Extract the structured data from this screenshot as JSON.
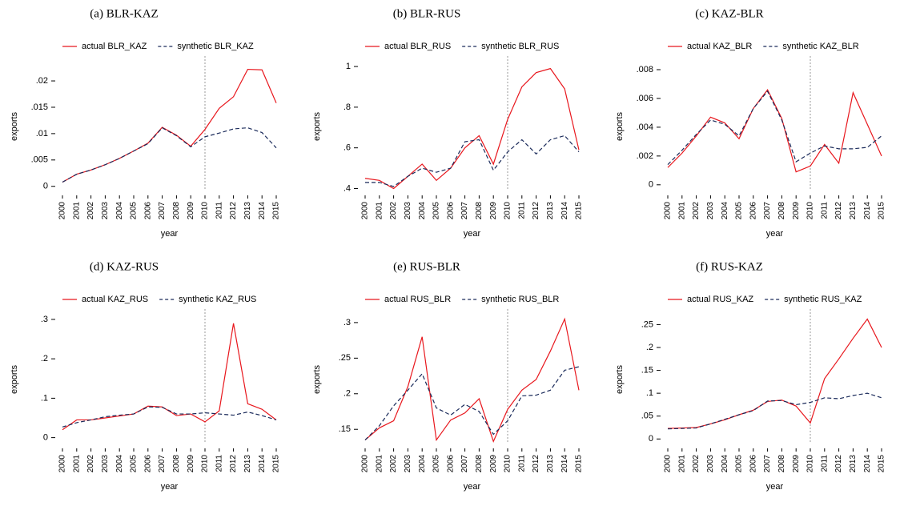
{
  "chart_data": [
    {
      "type": "line",
      "title": "(a) BLR-KAZ",
      "x_label": "year",
      "y_label": "exports",
      "x": [
        2000,
        2001,
        2002,
        2003,
        2004,
        2005,
        2006,
        2007,
        2008,
        2009,
        2010,
        2011,
        2012,
        2013,
        2014,
        2015
      ],
      "xlim": [
        2000,
        2015
      ],
      "xticks": [
        2000,
        2001,
        2002,
        2003,
        2004,
        2005,
        2006,
        2007,
        2008,
        2009,
        2010,
        2011,
        2012,
        2013,
        2014,
        2015
      ],
      "ylim": [
        -0.0008,
        0.0235
      ],
      "yticks": [
        0,
        {
          "value": 0.005,
          "label": ".005"
        },
        {
          "value": 0.01,
          "label": ".01"
        },
        {
          "value": 0.015,
          "label": ".015"
        },
        {
          "value": 0.02,
          "label": ".02"
        }
      ],
      "vline": 2010,
      "series": [
        {
          "name": "actual BLR_KAZ",
          "color": "#e8171d",
          "dash": false,
          "values": [
            0.0008,
            0.0023,
            0.0031,
            0.0041,
            0.0053,
            0.0067,
            0.0082,
            0.0112,
            0.0097,
            0.0076,
            0.0108,
            0.0148,
            0.017,
            0.0222,
            0.0221,
            0.0158
          ]
        },
        {
          "name": "synthetic BLR_KAZ",
          "color": "#1a2a5a",
          "dash": true,
          "values": [
            0.0008,
            0.0023,
            0.0031,
            0.0041,
            0.0053,
            0.0067,
            0.0081,
            0.0111,
            0.0096,
            0.0075,
            0.0094,
            0.0101,
            0.0109,
            0.0111,
            0.0102,
            0.0073
          ]
        }
      ]
    },
    {
      "type": "line",
      "title": "(b) BLR-RUS",
      "x_label": "year",
      "y_label": "exports",
      "x": [
        2000,
        2001,
        2002,
        2003,
        2004,
        2005,
        2006,
        2007,
        2008,
        2009,
        2010,
        2011,
        2012,
        2013,
        2014,
        2015
      ],
      "xlim": [
        2000,
        2015
      ],
      "xticks": [
        2000,
        2001,
        2002,
        2003,
        2004,
        2005,
        2006,
        2007,
        2008,
        2009,
        2010,
        2011,
        2012,
        2013,
        2014,
        2015
      ],
      "ylim": [
        0.39,
        1.02
      ],
      "yticks": [
        {
          "value": 0.4,
          "label": ".4"
        },
        {
          "value": 0.6,
          "label": ".6"
        },
        {
          "value": 0.8,
          "label": ".8"
        },
        1
      ],
      "vline": 2010,
      "series": [
        {
          "name": "actual BLR_RUS",
          "color": "#e8171d",
          "dash": false,
          "values": [
            0.45,
            0.44,
            0.4,
            0.46,
            0.52,
            0.44,
            0.5,
            0.6,
            0.66,
            0.52,
            0.74,
            0.9,
            0.97,
            0.99,
            0.89,
            0.59
          ]
        },
        {
          "name": "synthetic BLR_RUS",
          "color": "#1a2a5a",
          "dash": true,
          "values": [
            0.43,
            0.43,
            0.41,
            0.46,
            0.5,
            0.48,
            0.5,
            0.63,
            0.64,
            0.49,
            0.58,
            0.64,
            0.57,
            0.64,
            0.66,
            0.58
          ]
        }
      ]
    },
    {
      "type": "line",
      "title": "(c) KAZ-BLR",
      "x_label": "year",
      "y_label": "exports",
      "x": [
        2000,
        2001,
        2002,
        2003,
        2004,
        2005,
        2006,
        2007,
        2008,
        2009,
        2010,
        2011,
        2012,
        2013,
        2014,
        2015
      ],
      "xlim": [
        2000,
        2015
      ],
      "xticks": [
        2000,
        2001,
        2002,
        2003,
        2004,
        2005,
        2006,
        2007,
        2008,
        2009,
        2010,
        2011,
        2012,
        2013,
        2014,
        2015
      ],
      "ylim": [
        -0.0004,
        0.0085
      ],
      "yticks": [
        0,
        {
          "value": 0.002,
          "label": ".002"
        },
        {
          "value": 0.004,
          "label": ".004"
        },
        {
          "value": 0.006,
          "label": ".006"
        },
        {
          "value": 0.008,
          "label": ".008"
        }
      ],
      "vline": 2010,
      "series": [
        {
          "name": "actual KAZ_BLR",
          "color": "#e8171d",
          "dash": false,
          "values": [
            0.0012,
            0.0022,
            0.0034,
            0.0047,
            0.0043,
            0.0032,
            0.0053,
            0.0066,
            0.0046,
            0.0009,
            0.0013,
            0.0028,
            0.0015,
            0.0064,
            0.0042,
            0.002
          ]
        },
        {
          "name": "synthetic KAZ_BLR",
          "color": "#1a2a5a",
          "dash": true,
          "values": [
            0.0014,
            0.0024,
            0.0035,
            0.0045,
            0.0042,
            0.0034,
            0.0053,
            0.0065,
            0.0045,
            0.0016,
            0.0022,
            0.0027,
            0.0025,
            0.0025,
            0.0026,
            0.0034
          ]
        }
      ]
    },
    {
      "type": "line",
      "title": "(d) KAZ-RUS",
      "x_label": "year",
      "y_label": "exports",
      "x": [
        2000,
        2001,
        2002,
        2003,
        2004,
        2005,
        2006,
        2007,
        2008,
        2009,
        2010,
        2011,
        2012,
        2013,
        2014,
        2015
      ],
      "xlim": [
        2000,
        2015
      ],
      "xticks": [
        2000,
        2001,
        2002,
        2003,
        2004,
        2005,
        2006,
        2007,
        2008,
        2009,
        2010,
        2011,
        2012,
        2013,
        2014,
        2015
      ],
      "ylim": [
        -0.015,
        0.31
      ],
      "yticks": [
        0,
        {
          "value": 0.1,
          "label": ".1"
        },
        {
          "value": 0.2,
          "label": ".2"
        },
        {
          "value": 0.3,
          "label": ".3"
        }
      ],
      "vline": 2010,
      "series": [
        {
          "name": "actual KAZ_RUS",
          "color": "#e8171d",
          "dash": false,
          "values": [
            0.02,
            0.045,
            0.045,
            0.05,
            0.055,
            0.06,
            0.08,
            0.078,
            0.056,
            0.06,
            0.04,
            0.068,
            0.29,
            0.086,
            0.072,
            0.045
          ]
        },
        {
          "name": "synthetic KAZ_RUS",
          "color": "#1a2a5a",
          "dash": true,
          "values": [
            0.027,
            0.038,
            0.045,
            0.053,
            0.057,
            0.06,
            0.078,
            0.077,
            0.06,
            0.06,
            0.063,
            0.06,
            0.057,
            0.065,
            0.056,
            0.045
          ]
        }
      ]
    },
    {
      "type": "line",
      "title": "(e) RUS-BLR",
      "x_label": "year",
      "y_label": "exports",
      "x": [
        2000,
        2001,
        2002,
        2003,
        2004,
        2005,
        2006,
        2007,
        2008,
        2009,
        2010,
        2011,
        2012,
        2013,
        2014,
        2015
      ],
      "xlim": [
        2000,
        2015
      ],
      "xticks": [
        2000,
        2001,
        2002,
        2003,
        2004,
        2005,
        2006,
        2007,
        2008,
        2009,
        2010,
        2011,
        2012,
        2013,
        2014,
        2015
      ],
      "ylim": [
        0.13,
        0.31
      ],
      "yticks": [
        {
          "value": 0.15,
          "label": ".15"
        },
        {
          "value": 0.2,
          "label": ".2"
        },
        {
          "value": 0.25,
          "label": ".25"
        },
        {
          "value": 0.3,
          "label": ".3"
        }
      ],
      "vline": 2010,
      "series": [
        {
          "name": "actual RUS_BLR",
          "color": "#e8171d",
          "dash": false,
          "values": [
            0.135,
            0.152,
            0.162,
            0.21,
            0.28,
            0.135,
            0.163,
            0.173,
            0.193,
            0.133,
            0.178,
            0.205,
            0.22,
            0.26,
            0.305,
            0.205
          ]
        },
        {
          "name": "synthetic RUS_BLR",
          "color": "#1a2a5a",
          "dash": true,
          "values": [
            0.135,
            0.155,
            0.183,
            0.205,
            0.228,
            0.18,
            0.17,
            0.185,
            0.175,
            0.143,
            0.162,
            0.197,
            0.198,
            0.205,
            0.233,
            0.238
          ]
        }
      ]
    },
    {
      "type": "line",
      "title": "(f) RUS-KAZ",
      "x_label": "year",
      "y_label": "exports",
      "x": [
        2000,
        2001,
        2002,
        2003,
        2004,
        2005,
        2006,
        2007,
        2008,
        2009,
        2010,
        2011,
        2012,
        2013,
        2014,
        2015
      ],
      "xlim": [
        2000,
        2015
      ],
      "xticks": [
        2000,
        2001,
        2002,
        2003,
        2004,
        2005,
        2006,
        2007,
        2008,
        2009,
        2010,
        2011,
        2012,
        2013,
        2014,
        2015
      ],
      "ylim": [
        -0.01,
        0.27
      ],
      "yticks": [
        0,
        {
          "value": 0.05,
          "label": ".05"
        },
        {
          "value": 0.1,
          "label": ".1"
        },
        {
          "value": 0.15,
          "label": ".15"
        },
        {
          "value": 0.2,
          "label": ".2"
        },
        {
          "value": 0.25,
          "label": ".25"
        }
      ],
      "vline": 2010,
      "series": [
        {
          "name": "actual RUS_KAZ",
          "color": "#e8171d",
          "dash": false,
          "values": [
            0.023,
            0.024,
            0.025,
            0.033,
            0.042,
            0.053,
            0.063,
            0.082,
            0.085,
            0.072,
            0.035,
            0.132,
            0.175,
            0.22,
            0.262,
            0.2
          ]
        },
        {
          "name": "synthetic RUS_KAZ",
          "color": "#1a2a5a",
          "dash": true,
          "values": [
            0.022,
            0.023,
            0.024,
            0.033,
            0.043,
            0.053,
            0.062,
            0.083,
            0.084,
            0.075,
            0.08,
            0.09,
            0.088,
            0.095,
            0.1,
            0.09
          ]
        }
      ]
    }
  ]
}
